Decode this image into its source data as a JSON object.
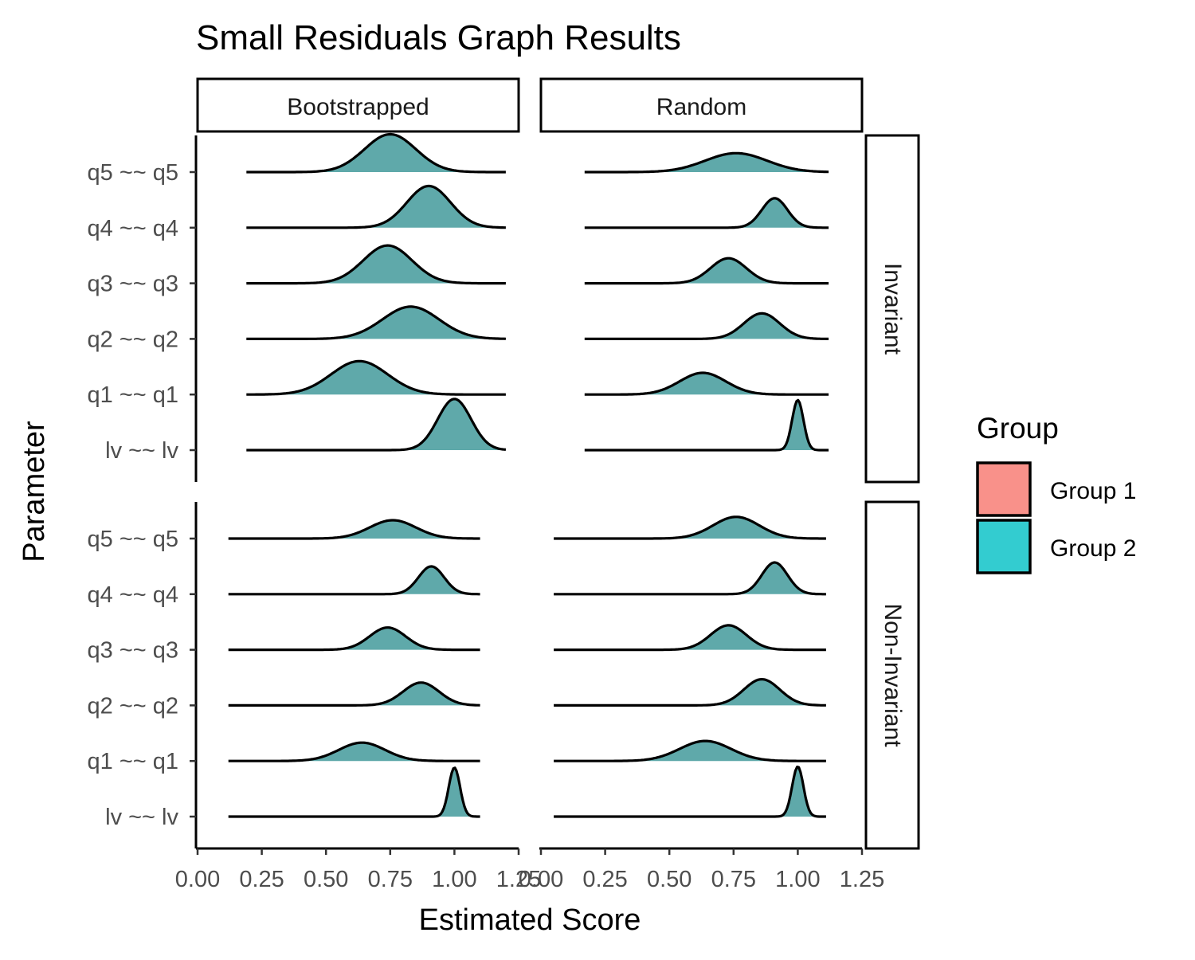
{
  "chart_data": {
    "type": "ridgeline",
    "title": "Small Residuals Graph Results",
    "xlabel": "Estimated Score",
    "ylabel": "Parameter",
    "xlim": [
      0,
      1.25
    ],
    "x_ticks": [
      "0.00",
      "0.25",
      "0.50",
      "0.75",
      "1.00",
      "1.25"
    ],
    "columns": [
      "Bootstrapped",
      "Random"
    ],
    "rows": [
      "Invariant",
      "Non-Invariant"
    ],
    "parameters": [
      "q5 ~~ q5",
      "q4 ~~ q4",
      "q3 ~~ q3",
      "q2 ~~ q2",
      "q1 ~~ q1",
      "lv ~~ lv"
    ],
    "legend": {
      "title": "Group",
      "position": "right",
      "items": [
        {
          "label": "Group 1",
          "color": "#F8766D"
        },
        {
          "label": "Group 2",
          "color": "#00BFC4"
        }
      ]
    },
    "overlap_fill_color": "#5FA9AA",
    "panels": [
      {
        "column": "Bootstrapped",
        "row": "Invariant",
        "x_range": [
          0.19,
          1.2
        ],
        "ridges": [
          {
            "parameter": "q5 ~~ q5",
            "mode": 0.75,
            "sd": 0.1,
            "height": 0.68
          },
          {
            "parameter": "q4 ~~ q4",
            "mode": 0.9,
            "sd": 0.085,
            "height": 0.75
          },
          {
            "parameter": "q3 ~~ q3",
            "mode": 0.74,
            "sd": 0.095,
            "height": 0.68
          },
          {
            "parameter": "q2 ~~ q2",
            "mode": 0.83,
            "sd": 0.11,
            "height": 0.58
          },
          {
            "parameter": "q1 ~~ q1",
            "mode": 0.63,
            "sd": 0.11,
            "height": 0.6
          },
          {
            "parameter": "lv ~~ lv",
            "mode": 1.0,
            "sd": 0.065,
            "height": 0.92
          }
        ]
      },
      {
        "column": "Random",
        "row": "Invariant",
        "x_range": [
          0.17,
          1.12
        ],
        "ridges": [
          {
            "parameter": "q5 ~~ q5",
            "mode": 0.76,
            "sd": 0.12,
            "height": 0.34
          },
          {
            "parameter": "q4 ~~ q4",
            "mode": 0.91,
            "sd": 0.05,
            "height": 0.53
          },
          {
            "parameter": "q3 ~~ q3",
            "mode": 0.73,
            "sd": 0.07,
            "height": 0.45
          },
          {
            "parameter": "q2 ~~ q2",
            "mode": 0.86,
            "sd": 0.07,
            "height": 0.46
          },
          {
            "parameter": "q1 ~~ q1",
            "mode": 0.63,
            "sd": 0.09,
            "height": 0.39
          },
          {
            "parameter": "lv ~~ lv",
            "mode": 1.0,
            "sd": 0.022,
            "height": 0.9
          }
        ]
      },
      {
        "column": "Bootstrapped",
        "row": "Non-Invariant",
        "x_range": [
          0.12,
          1.1
        ],
        "ridges": [
          {
            "parameter": "q5 ~~ q5",
            "mode": 0.76,
            "sd": 0.09,
            "height": 0.33
          },
          {
            "parameter": "q4 ~~ q4",
            "mode": 0.91,
            "sd": 0.05,
            "height": 0.5
          },
          {
            "parameter": "q3 ~~ q3",
            "mode": 0.74,
            "sd": 0.07,
            "height": 0.4
          },
          {
            "parameter": "q2 ~~ q2",
            "mode": 0.87,
            "sd": 0.07,
            "height": 0.41
          },
          {
            "parameter": "q1 ~~ q1",
            "mode": 0.64,
            "sd": 0.09,
            "height": 0.33
          },
          {
            "parameter": "lv ~~ lv",
            "mode": 1.0,
            "sd": 0.022,
            "height": 0.88
          }
        ]
      },
      {
        "column": "Random",
        "row": "Non-Invariant",
        "x_range": [
          0.05,
          1.11
        ],
        "ridges": [
          {
            "parameter": "q5 ~~ q5",
            "mode": 0.76,
            "sd": 0.09,
            "height": 0.39
          },
          {
            "parameter": "q4 ~~ q4",
            "mode": 0.91,
            "sd": 0.05,
            "height": 0.57
          },
          {
            "parameter": "q3 ~~ q3",
            "mode": 0.73,
            "sd": 0.07,
            "height": 0.44
          },
          {
            "parameter": "q2 ~~ q2",
            "mode": 0.86,
            "sd": 0.07,
            "height": 0.47
          },
          {
            "parameter": "q1 ~~ q1",
            "mode": 0.64,
            "sd": 0.1,
            "height": 0.36
          },
          {
            "parameter": "lv ~~ lv",
            "mode": 1.0,
            "sd": 0.022,
            "height": 0.9
          }
        ]
      }
    ]
  }
}
